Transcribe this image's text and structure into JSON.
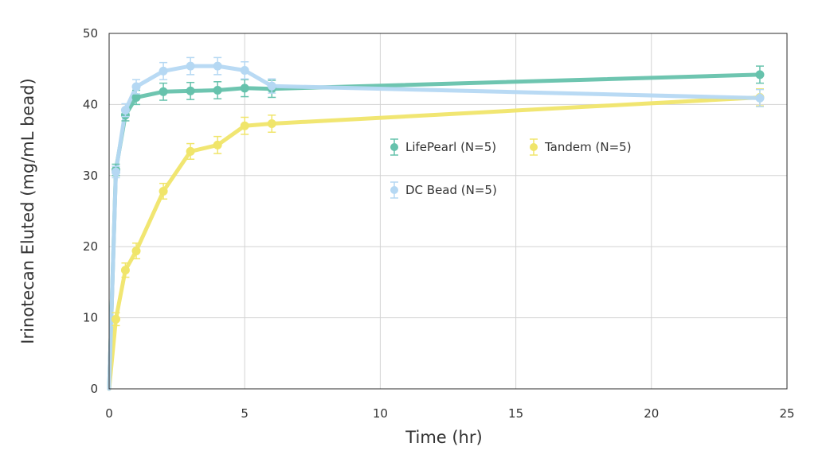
{
  "chart_data": {
    "type": "line",
    "title": "",
    "xlabel": "Time (hr)",
    "ylabel": "Irinotecan Eluted (mg/mL bead)",
    "xlim": [
      0,
      25
    ],
    "ylim": [
      0,
      50
    ],
    "xticks": [
      0,
      5,
      10,
      15,
      20,
      25
    ],
    "yticks": [
      0,
      10,
      20,
      30,
      40,
      50
    ],
    "grid": true,
    "legend_position": "center-right",
    "series": [
      {
        "name": "LifePearl (N=5)",
        "color": "#66c2ac",
        "x": [
          0,
          0.25,
          0.6,
          1,
          2,
          3,
          4,
          5,
          6,
          24
        ],
        "y": [
          0,
          30.8,
          38.5,
          41.0,
          41.8,
          41.9,
          42.0,
          42.3,
          42.2,
          44.2
        ],
        "err": [
          0,
          0.8,
          0.8,
          1.0,
          1.2,
          1.2,
          1.2,
          1.2,
          1.2,
          1.2
        ]
      },
      {
        "name": "Tandem (N=5)",
        "color": "#f0e56a",
        "x": [
          0,
          0.25,
          0.6,
          1,
          2,
          3,
          4,
          5,
          6,
          24
        ],
        "y": [
          0,
          9.8,
          16.7,
          19.4,
          27.8,
          33.4,
          34.3,
          37.0,
          37.3,
          41.0
        ],
        "err": [
          0,
          0.9,
          1.0,
          1.1,
          1.1,
          1.1,
          1.2,
          1.2,
          1.2,
          1.2
        ]
      },
      {
        "name": "DC Bead (N=5)",
        "color": "#b5d8f3",
        "x": [
          0,
          0.25,
          0.6,
          1,
          2,
          3,
          4,
          5,
          6,
          24
        ],
        "y": [
          0,
          30.5,
          39.2,
          42.5,
          44.7,
          45.4,
          45.4,
          44.8,
          42.6,
          40.9
        ],
        "err": [
          0,
          0.8,
          0.9,
          1.0,
          1.2,
          1.2,
          1.2,
          1.2,
          1.0,
          1.2
        ]
      }
    ]
  }
}
